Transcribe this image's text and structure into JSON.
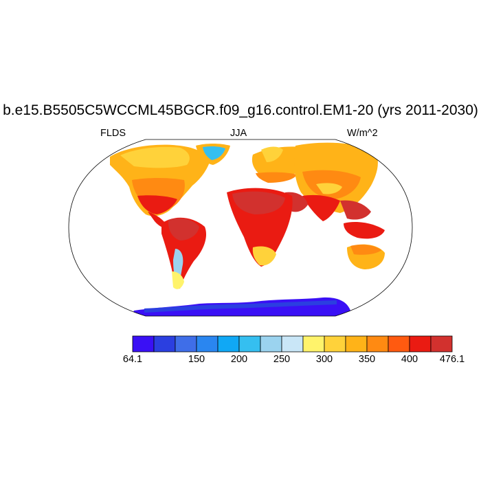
{
  "title": "b.e15.B5505C5WCCML45BGCR.f09_g16.control.EM1-20 (yrs 2011-2030)",
  "left_label": "FLDS",
  "center_label": "JJA",
  "right_label": "W/m^2",
  "colorbar": {
    "colors": [
      "#3a10f5",
      "#2b3fe0",
      "#3f6ee8",
      "#2a86f0",
      "#10a8f5",
      "#35bff0",
      "#9bd3ef",
      "#c9e6f7",
      "#fff36b",
      "#ffd23a",
      "#ffb318",
      "#ff8a12",
      "#ff5a10",
      "#ea1b12",
      "#d2312e"
    ],
    "tick_labels": [
      "64.1",
      "150",
      "200",
      "250",
      "300",
      "350",
      "400",
      "476.1"
    ],
    "tick_boundaries": [
      0,
      2,
      3,
      4,
      5,
      6,
      7,
      8,
      9,
      10,
      11,
      12,
      13,
      14,
      15
    ],
    "labeled_boundaries": [
      0,
      3,
      5,
      7,
      9,
      11,
      13,
      15
    ]
  }
}
